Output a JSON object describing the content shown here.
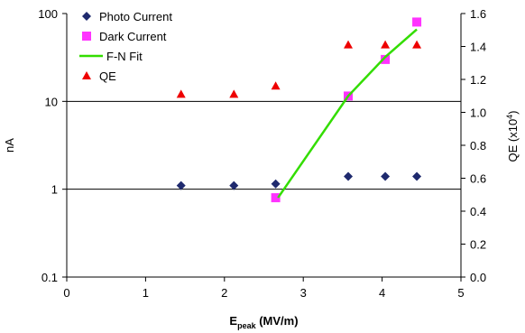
{
  "chart_data": {
    "type": "scatter",
    "x_axis": {
      "label_main": "E",
      "label_sub": "peak",
      "label_unit": " (MV/m)",
      "range": [
        0,
        5
      ],
      "ticks": [
        0,
        1,
        2,
        3,
        4,
        5
      ],
      "tick_labels": [
        "0",
        "1",
        "2",
        "3",
        "4",
        "5"
      ]
    },
    "y_left": {
      "label": "nA",
      "scale": "log",
      "range": [
        0.1,
        100
      ],
      "ticks": [
        0.1,
        1,
        10,
        100
      ],
      "tick_labels": [
        "0.1",
        "1",
        "10",
        "100"
      ],
      "gridlines": [
        1,
        10
      ]
    },
    "y_right": {
      "label_main": "QE  (x10",
      "label_sup": "4",
      "label_end": ")",
      "scale": "linear",
      "range": [
        0,
        1.6
      ],
      "ticks": [
        0,
        0.2,
        0.4,
        0.6,
        0.8,
        1.0,
        1.2,
        1.4,
        1.6
      ],
      "tick_labels": [
        "0.0",
        "0.2",
        "0.4",
        "0.6",
        "0.8",
        "1.0",
        "1.2",
        "1.4",
        "1.6"
      ]
    },
    "legend_position": "top-left",
    "series": [
      {
        "name": "Photo Current",
        "marker": "diamond",
        "color": "#1f2a6e",
        "axis": "left",
        "points": [
          [
            1.45,
            1.1
          ],
          [
            2.12,
            1.1
          ],
          [
            2.65,
            1.15
          ],
          [
            3.57,
            1.4
          ],
          [
            4.04,
            1.4
          ],
          [
            4.44,
            1.4
          ]
        ]
      },
      {
        "name": "Dark Current",
        "marker": "square",
        "color": "#ff33ff",
        "axis": "left",
        "points": [
          [
            2.65,
            0.8
          ],
          [
            3.57,
            11.5
          ],
          [
            4.04,
            30
          ],
          [
            4.44,
            80
          ]
        ]
      },
      {
        "name": "F-N Fit",
        "marker": "line",
        "color": "#33dd00",
        "axis": "left",
        "points": [
          [
            2.68,
            0.8
          ],
          [
            3.57,
            11.5
          ],
          [
            4.04,
            32
          ],
          [
            4.44,
            66
          ]
        ]
      },
      {
        "name": "QE",
        "marker": "triangle",
        "color": "#ee0000",
        "axis": "right",
        "points": [
          [
            1.45,
            1.11
          ],
          [
            2.12,
            1.11
          ],
          [
            2.65,
            1.16
          ],
          [
            3.57,
            1.41
          ],
          [
            4.04,
            1.41
          ],
          [
            4.44,
            1.41
          ]
        ]
      }
    ]
  }
}
